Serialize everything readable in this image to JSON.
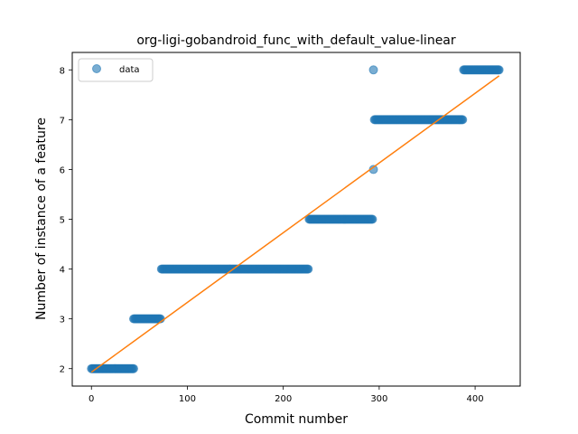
{
  "chart_data": {
    "type": "scatter",
    "title": "org-ligi-gobandroid_func_with_default_value-linear",
    "xlabel": "Commit number",
    "ylabel": "Number of instance of a feature",
    "xlim": [
      -20,
      447
    ],
    "ylim": [
      1.65,
      8.35
    ],
    "xticks": [
      0,
      100,
      200,
      300,
      400
    ],
    "yticks": [
      2,
      3,
      4,
      5,
      6,
      7,
      8
    ],
    "grid": false,
    "legend": {
      "position": "top-left",
      "entries": [
        "data"
      ]
    },
    "colors": {
      "data": "#1f77b4",
      "fit": "#ff7f0e"
    },
    "series": [
      {
        "name": "data",
        "kind": "scatter",
        "segments": [
          {
            "x_start": 0,
            "x_end": 44,
            "y": 2
          },
          {
            "x_start": 44,
            "x_end": 72,
            "y": 3
          },
          {
            "x_start": 73,
            "x_end": 226,
            "y": 4
          },
          {
            "x_start": 227,
            "x_end": 293,
            "y": 5
          },
          {
            "x_start": 294,
            "x_end": 294,
            "y": 6
          },
          {
            "x_start": 294,
            "x_end": 294,
            "y": 8
          },
          {
            "x_start": 295,
            "x_end": 387,
            "y": 7
          },
          {
            "x_start": 388,
            "x_end": 425,
            "y": 8
          }
        ]
      },
      {
        "name": "",
        "kind": "line",
        "x": [
          0,
          425
        ],
        "y": [
          1.93,
          7.88
        ]
      }
    ]
  }
}
